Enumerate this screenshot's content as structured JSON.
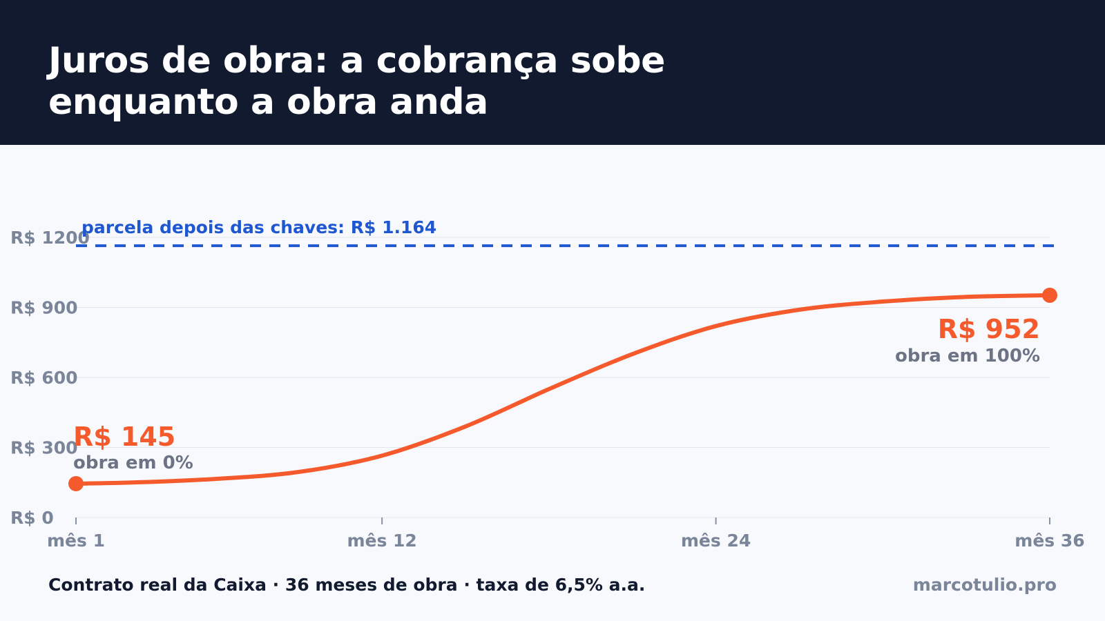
{
  "header": {
    "title_line1": "Juros de obra: a cobrança sobe",
    "title_line2": "enquanto a obra anda"
  },
  "chart_data": {
    "type": "line",
    "title": "Juros de obra: a cobrança sobe enquanto a obra anda",
    "xlabel": "",
    "ylabel": "",
    "x_tick_labels": [
      "mês 1",
      "mês 12",
      "mês 24",
      "mês 36"
    ],
    "x_ticks": [
      1,
      12,
      24,
      36
    ],
    "y_tick_labels": [
      "R$ 0",
      "R$ 300",
      "R$ 600",
      "R$ 900",
      "R$ 1200"
    ],
    "y_ticks": [
      0,
      300,
      600,
      900,
      1200
    ],
    "xlim": [
      1,
      36
    ],
    "ylim": [
      0,
      1200
    ],
    "grid": true,
    "series": [
      {
        "x": [
          1,
          3,
          6,
          9,
          12,
          15,
          18,
          21,
          24,
          27,
          30,
          33,
          36
        ],
        "values": [
          145,
          150,
          165,
          195,
          265,
          390,
          550,
          700,
          820,
          890,
          925,
          945,
          952
        ],
        "color": "#f55a2c"
      }
    ],
    "reference_line": {
      "value": 1164,
      "label": "parcela depois das chaves: R$ 1.164",
      "color": "#1f57d1"
    },
    "annotations": {
      "start": {
        "value_label": "R$ 145",
        "caption": "obra em 0%"
      },
      "end": {
        "value_label": "R$ 952",
        "caption": "obra em 100%"
      }
    },
    "colors": {
      "line": "#f55a2c",
      "reference": "#1f57d1",
      "grid": "#e2e6ec",
      "tick_text": "#7a8599",
      "caption_text": "#6b7385"
    }
  },
  "footer": {
    "note": "Contrato real da Caixa · 36 meses de obra · taxa de 6,5% a.a.",
    "brand": "marcotulio.pro"
  }
}
